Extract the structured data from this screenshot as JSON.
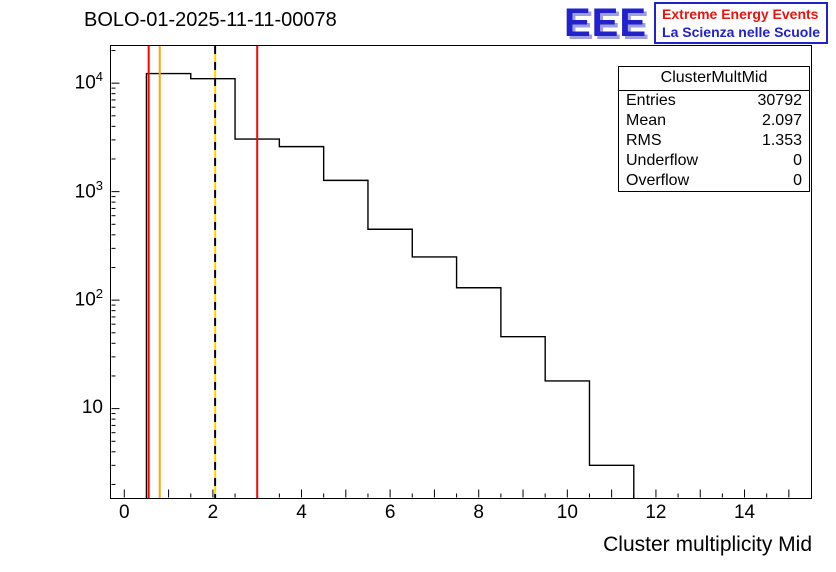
{
  "header": {
    "title": "BOLO-01-2025-11-11-00078"
  },
  "logo": {
    "text": "EEE",
    "line1": "Extreme Energy Events",
    "line2": "La Scienza nelle Scuole",
    "colors": {
      "eee": "#2222cc",
      "line1": "#e8150f",
      "line2": "#2222cc"
    }
  },
  "stats": {
    "title": "ClusterMultMid",
    "rows": [
      {
        "label": "Entries",
        "value": "30792"
      },
      {
        "label": "Mean",
        "value": "2.097"
      },
      {
        "label": "RMS",
        "value": "1.353"
      },
      {
        "label": "Underflow",
        "value": "0"
      },
      {
        "label": "Overflow",
        "value": "0"
      }
    ]
  },
  "axes": {
    "x_title": "Cluster multiplicity Mid",
    "x_ticks": [
      0,
      2,
      4,
      6,
      8,
      10,
      12,
      14
    ],
    "y_tick_decades": [
      1,
      2,
      3,
      4
    ]
  },
  "chart_data": {
    "type": "bar",
    "subtype": "step-histogram",
    "title": "BOLO-01-2025-11-11-00078",
    "histogram_name": "ClusterMultMid",
    "xlabel": "Cluster multiplicity Mid",
    "ylabel": "",
    "y_scale": "log",
    "grid": false,
    "x_range": [
      -0.3,
      15.5
    ],
    "y_range": [
      1.5,
      22000
    ],
    "bin_edges": [
      0.5,
      1.5,
      2.5,
      3.5,
      4.5,
      5.5,
      6.5,
      7.5,
      8.5,
      9.5,
      10.5,
      11.5
    ],
    "bin_values": [
      12264,
      11000,
      3050,
      2600,
      1270,
      450,
      250,
      130,
      46,
      18,
      3
    ],
    "line_color": "#000000",
    "stats": {
      "entries": 30792,
      "mean": 2.097,
      "rms": 1.353,
      "underflow": 0,
      "overflow": 0
    },
    "vlines": [
      {
        "x": 0.55,
        "color": "#ff0000",
        "style": "solid"
      },
      {
        "x": 0.8,
        "color": "#ffa500",
        "style": "solid"
      },
      {
        "x": 2.05,
        "color": "#ffd700",
        "color2": "#000000",
        "style": "dashed"
      },
      {
        "x": 3.0,
        "color": "#ff0000",
        "style": "solid"
      }
    ]
  }
}
